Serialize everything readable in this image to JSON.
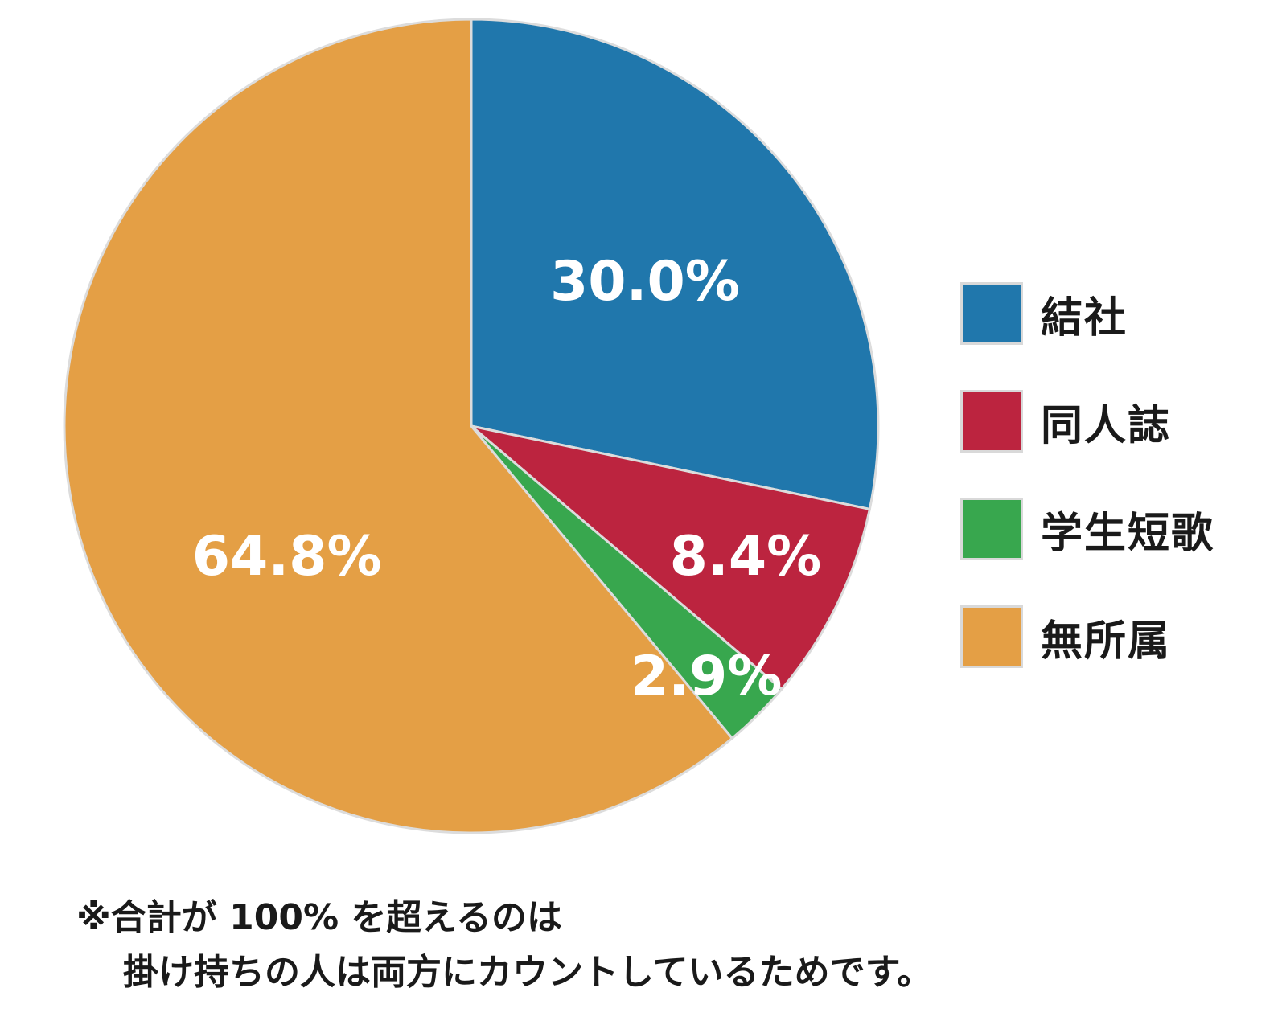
{
  "chart_data": {
    "type": "pie",
    "slices": [
      {
        "name": "結社",
        "value": 30.0,
        "label": "30.0%",
        "color": "#2077ac"
      },
      {
        "name": "同人誌",
        "value": 8.4,
        "label": "8.4%",
        "color": "#bc243f"
      },
      {
        "name": "学生短歌",
        "value": 2.9,
        "label": "2.9%",
        "color": "#38a74e"
      },
      {
        "name": "無所属",
        "value": 64.8,
        "label": "64.8%",
        "color": "#e49f45"
      }
    ],
    "legend_position": "right",
    "note": {
      "line1": "※合計が 100% を超えるのは",
      "line2": "掛け持ちの人は両方にカウントしているためです。"
    }
  }
}
